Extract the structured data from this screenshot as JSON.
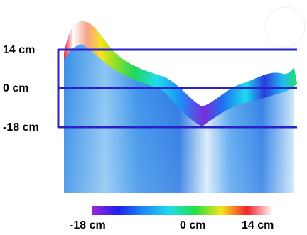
{
  "levels": {
    "top": "14 cm",
    "middle": "0 cm",
    "bottom": "-18 cm"
  },
  "color_scale": {
    "min_label": "-18 cm",
    "mid_label": "0 cm",
    "max_label": "14 cm",
    "stops": [
      "#9a27d6",
      "#1f1ff0",
      "#1e8df5",
      "#1fdcec",
      "#22e040",
      "#f7e51c",
      "#f2222a",
      "#ffffff"
    ]
  },
  "colors": {
    "frame": "#2a22c8",
    "water_dark": "#2f7fe6",
    "water_light": "#d6ecfb"
  }
}
